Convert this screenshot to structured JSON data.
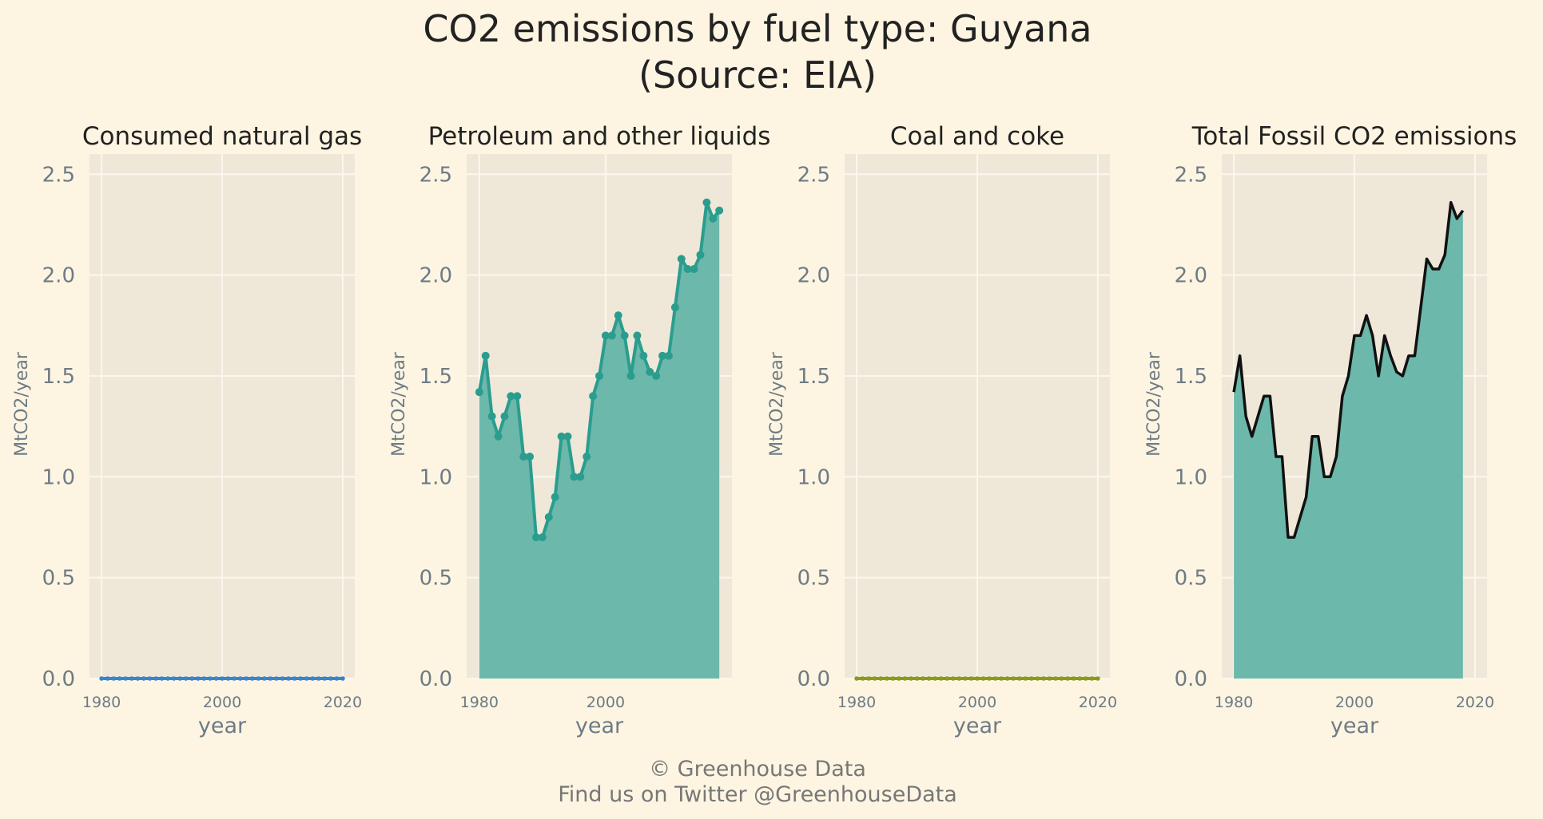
{
  "title": {
    "line1": "CO2 emissions by fuel type: Guyana",
    "line2": "(Source: EIA)"
  },
  "footer": {
    "line1": "© Greenhouse Data",
    "line2": "Find us on Twitter @GreenhouseData"
  },
  "colors": {
    "background": "#fdf5e2",
    "plot_background": "#efe8d8",
    "grid": "#fbf7ee",
    "natural_gas": "#3a84cc",
    "petroleum": "#2a9d8f",
    "petroleum_fill": "#6cb8ab",
    "coal": "#8a9a1e",
    "total_line": "#111111"
  },
  "chart_data": [
    {
      "type": "line",
      "title": "Consumed natural gas",
      "xlabel": "year",
      "ylabel": "MtCO2/year",
      "ylim": [
        0,
        2.6
      ],
      "y_ticks": [
        0.0,
        0.5,
        1.0,
        1.5,
        2.0,
        2.5
      ],
      "y_tick_labels": [
        "0.0",
        "0.5",
        "1.0",
        "1.5",
        "2.0",
        "2.5"
      ],
      "x_ticks": [
        1980,
        2000,
        2020
      ],
      "x_tick_labels": [
        "1980",
        "2000",
        "2020"
      ],
      "xlim": [
        1978,
        2022
      ],
      "grid": true,
      "series": [
        {
          "x": [
            1980,
            1981,
            1982,
            1983,
            1984,
            1985,
            1986,
            1987,
            1988,
            1989,
            1990,
            1991,
            1992,
            1993,
            1994,
            1995,
            1996,
            1997,
            1998,
            1999,
            2000,
            2001,
            2002,
            2003,
            2004,
            2005,
            2006,
            2007,
            2008,
            2009,
            2010,
            2011,
            2012,
            2013,
            2014,
            2015,
            2016,
            2017,
            2018,
            2019,
            2020
          ],
          "y": [
            0,
            0,
            0,
            0,
            0,
            0,
            0,
            0,
            0,
            0,
            0,
            0,
            0,
            0,
            0,
            0,
            0,
            0,
            0,
            0,
            0,
            0,
            0,
            0,
            0,
            0,
            0,
            0,
            0,
            0,
            0,
            0,
            0,
            0,
            0,
            0,
            0,
            0,
            0,
            0,
            0
          ],
          "color": "#3a84cc",
          "markers": true,
          "fill": false
        }
      ]
    },
    {
      "type": "area",
      "title": "Petroleum and other liquids",
      "xlabel": "year",
      "ylabel": "MtCO2/year",
      "ylim": [
        0,
        2.6
      ],
      "y_ticks": [
        0.0,
        0.5,
        1.0,
        1.5,
        2.0,
        2.5
      ],
      "y_tick_labels": [
        "0.0",
        "0.5",
        "1.0",
        "1.5",
        "2.0",
        "2.5"
      ],
      "x_ticks": [
        1980,
        2000
      ],
      "x_tick_labels": [
        "1980",
        "2000"
      ],
      "xlim": [
        1978,
        2020
      ],
      "grid": true,
      "series": [
        {
          "x": [
            1980,
            1981,
            1982,
            1983,
            1984,
            1985,
            1986,
            1987,
            1988,
            1989,
            1990,
            1991,
            1992,
            1993,
            1994,
            1995,
            1996,
            1997,
            1998,
            1999,
            2000,
            2001,
            2002,
            2003,
            2004,
            2005,
            2006,
            2007,
            2008,
            2009,
            2010,
            2011,
            2012,
            2013,
            2014,
            2015,
            2016,
            2017,
            2018
          ],
          "y": [
            1.42,
            1.6,
            1.3,
            1.2,
            1.3,
            1.4,
            1.4,
            1.1,
            1.1,
            0.7,
            0.7,
            0.8,
            0.9,
            1.2,
            1.2,
            1.0,
            1.0,
            1.1,
            1.4,
            1.5,
            1.7,
            1.7,
            1.8,
            1.7,
            1.5,
            1.7,
            1.6,
            1.52,
            1.5,
            1.6,
            1.6,
            1.84,
            2.08,
            2.03,
            2.03,
            2.1,
            2.36,
            2.28,
            2.32
          ],
          "color": "#2a9d8f",
          "markers": true,
          "fill": true
        }
      ]
    },
    {
      "type": "line",
      "title": "Coal and coke",
      "xlabel": "year",
      "ylabel": "MtCO2/year",
      "ylim": [
        0,
        2.6
      ],
      "y_ticks": [
        0.0,
        0.5,
        1.0,
        1.5,
        2.0,
        2.5
      ],
      "y_tick_labels": [
        "0.0",
        "0.5",
        "1.0",
        "1.5",
        "2.0",
        "2.5"
      ],
      "x_ticks": [
        1980,
        2000,
        2020
      ],
      "x_tick_labels": [
        "1980",
        "2000",
        "2020"
      ],
      "xlim": [
        1978,
        2022
      ],
      "grid": true,
      "series": [
        {
          "x": [
            1980,
            1981,
            1982,
            1983,
            1984,
            1985,
            1986,
            1987,
            1988,
            1989,
            1990,
            1991,
            1992,
            1993,
            1994,
            1995,
            1996,
            1997,
            1998,
            1999,
            2000,
            2001,
            2002,
            2003,
            2004,
            2005,
            2006,
            2007,
            2008,
            2009,
            2010,
            2011,
            2012,
            2013,
            2014,
            2015,
            2016,
            2017,
            2018,
            2019,
            2020
          ],
          "y": [
            0,
            0,
            0,
            0,
            0,
            0,
            0,
            0,
            0,
            0,
            0,
            0,
            0,
            0,
            0,
            0,
            0,
            0,
            0,
            0,
            0,
            0,
            0,
            0,
            0,
            0,
            0,
            0,
            0,
            0,
            0,
            0,
            0,
            0,
            0,
            0,
            0,
            0,
            0,
            0,
            0
          ],
          "color": "#8a9a1e",
          "markers": true,
          "fill": false
        }
      ]
    },
    {
      "type": "area",
      "title": "Total Fossil CO2 emissions",
      "xlabel": "year",
      "ylabel": "MtCO2/year",
      "ylim": [
        0,
        2.6
      ],
      "y_ticks": [
        0.0,
        0.5,
        1.0,
        1.5,
        2.0,
        2.5
      ],
      "y_tick_labels": [
        "0.0",
        "0.5",
        "1.0",
        "1.5",
        "2.0",
        "2.5"
      ],
      "x_ticks": [
        1980,
        2000,
        2020
      ],
      "x_tick_labels": [
        "1980",
        "2000",
        "2020"
      ],
      "xlim": [
        1978,
        2022
      ],
      "grid": true,
      "series": [
        {
          "x": [
            1980,
            1981,
            1982,
            1983,
            1984,
            1985,
            1986,
            1987,
            1988,
            1989,
            1990,
            1991,
            1992,
            1993,
            1994,
            1995,
            1996,
            1997,
            1998,
            1999,
            2000,
            2001,
            2002,
            2003,
            2004,
            2005,
            2006,
            2007,
            2008,
            2009,
            2010,
            2011,
            2012,
            2013,
            2014,
            2015,
            2016,
            2017,
            2018
          ],
          "y": [
            1.42,
            1.6,
            1.3,
            1.2,
            1.3,
            1.4,
            1.4,
            1.1,
            1.1,
            0.7,
            0.7,
            0.8,
            0.9,
            1.2,
            1.2,
            1.0,
            1.0,
            1.1,
            1.4,
            1.5,
            1.7,
            1.7,
            1.8,
            1.7,
            1.5,
            1.7,
            1.6,
            1.52,
            1.5,
            1.6,
            1.6,
            1.84,
            2.08,
            2.03,
            2.03,
            2.1,
            2.36,
            2.28,
            2.32
          ],
          "color": "#111111",
          "markers": false,
          "fill": true
        }
      ]
    }
  ]
}
